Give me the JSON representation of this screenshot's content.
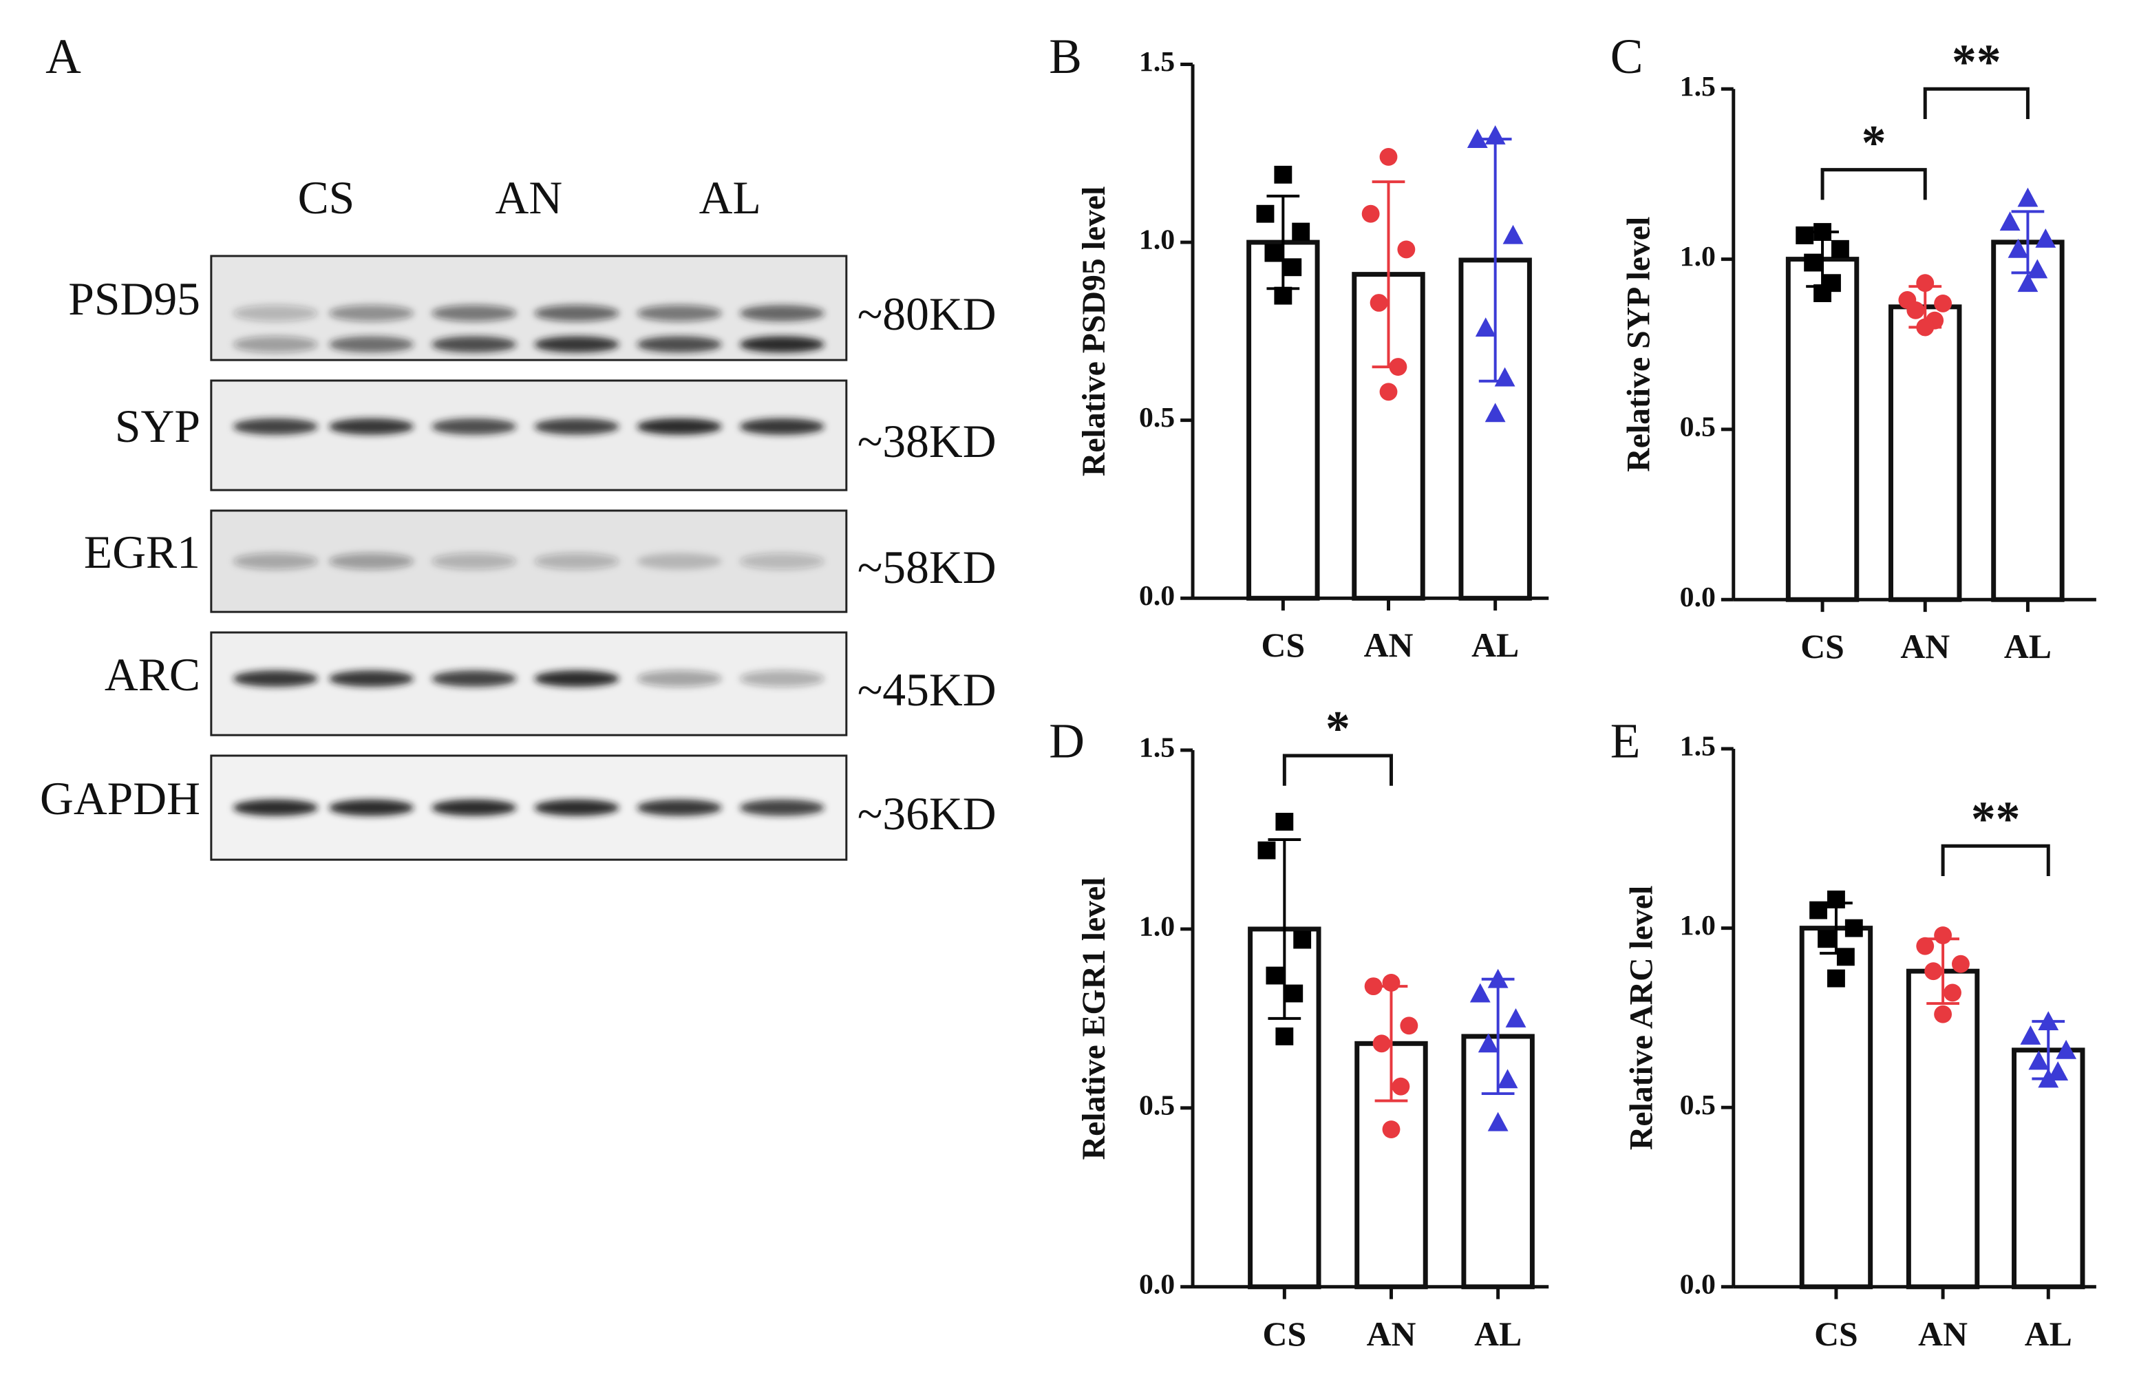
{
  "blot": {
    "panel": "A",
    "lanes": [
      "CS",
      "AN",
      "AL"
    ],
    "proteins": [
      {
        "name": "PSD95",
        "size": "~80KD"
      },
      {
        "name": "SYP",
        "size": "~38KD"
      },
      {
        "name": "EGR1",
        "size": "~58KD"
      },
      {
        "name": "ARC",
        "size": "~45KD"
      },
      {
        "name": "GAPDH",
        "size": "~36KD"
      }
    ]
  },
  "chart_data": [
    {
      "type": "bar",
      "panel": "B",
      "ylabel": "Relative PSD95 level",
      "categories": [
        "CS",
        "AN",
        "AL"
      ],
      "colors": [
        "#000000",
        "#e8393f",
        "#3b3bd6"
      ],
      "markers": [
        "square",
        "circle",
        "triangle"
      ],
      "values": [
        1.0,
        0.91,
        0.95
      ],
      "errors": [
        0.13,
        0.26,
        0.34
      ],
      "points": [
        [
          1.19,
          1.08,
          1.03,
          0.97,
          0.93,
          0.85
        ],
        [
          1.24,
          1.08,
          0.98,
          0.83,
          0.65,
          0.58
        ],
        [
          1.3,
          1.29,
          1.02,
          0.76,
          0.62,
          0.52
        ]
      ],
      "ylim": [
        0,
        1.5
      ],
      "yticks": [
        {
          "value": 0,
          "label": "0.0"
        },
        {
          "value": 0.5,
          "label": "0.5"
        },
        {
          "value": 1,
          "label": "1.0"
        },
        {
          "value": 1.5,
          "label": "1.5"
        }
      ],
      "significance": []
    },
    {
      "type": "bar",
      "panel": "C",
      "ylabel": "Relative SYP level",
      "categories": [
        "CS",
        "AN",
        "AL"
      ],
      "colors": [
        "#000000",
        "#e8393f",
        "#3b3bd6"
      ],
      "markers": [
        "square",
        "circle",
        "triangle"
      ],
      "values": [
        1.0,
        0.86,
        1.05
      ],
      "errors": [
        0.08,
        0.06,
        0.09
      ],
      "points": [
        [
          1.08,
          1.07,
          1.03,
          0.99,
          0.93,
          0.9
        ],
        [
          0.93,
          0.88,
          0.87,
          0.85,
          0.82,
          0.8
        ],
        [
          1.18,
          1.11,
          1.06,
          1.03,
          0.97,
          0.93
        ]
      ],
      "ylim": [
        0,
        1.5
      ],
      "yticks": [
        {
          "value": 0,
          "label": "0.0"
        },
        {
          "value": 0.5,
          "label": "0.5"
        },
        {
          "value": 1,
          "label": "1.0"
        },
        {
          "value": 1.5,
          "label": "1.5"
        }
      ],
      "significance": [
        {
          "between": [
            "CS",
            "AN"
          ],
          "label": "*"
        },
        {
          "between": [
            "AN",
            "AL"
          ],
          "label": "**"
        }
      ]
    },
    {
      "type": "bar",
      "panel": "D",
      "ylabel": "Relative EGR1 level",
      "categories": [
        "CS",
        "AN",
        "AL"
      ],
      "colors": [
        "#000000",
        "#e8393f",
        "#3b3bd6"
      ],
      "markers": [
        "square",
        "circle",
        "triangle"
      ],
      "values": [
        1.0,
        0.68,
        0.7
      ],
      "errors": [
        0.25,
        0.16,
        0.16
      ],
      "points": [
        [
          1.3,
          1.22,
          0.97,
          0.87,
          0.82,
          0.7
        ],
        [
          0.85,
          0.84,
          0.73,
          0.68,
          0.56,
          0.44
        ],
        [
          0.86,
          0.82,
          0.75,
          0.68,
          0.58,
          0.46
        ]
      ],
      "ylim": [
        0,
        1.5
      ],
      "yticks": [
        {
          "value": 0,
          "label": "0.0"
        },
        {
          "value": 0.5,
          "label": "0.5"
        },
        {
          "value": 1,
          "label": "1.0"
        },
        {
          "value": 1.5,
          "label": "1.5"
        }
      ],
      "significance": [
        {
          "between": [
            "CS",
            "AN"
          ],
          "label": "*"
        }
      ]
    },
    {
      "type": "bar",
      "panel": "E",
      "ylabel": "Relative ARC level",
      "categories": [
        "CS",
        "AN",
        "AL"
      ],
      "colors": [
        "#000000",
        "#e8393f",
        "#3b3bd6"
      ],
      "markers": [
        "square",
        "circle",
        "triangle"
      ],
      "values": [
        1.0,
        0.88,
        0.66
      ],
      "errors": [
        0.07,
        0.09,
        0.08
      ],
      "points": [
        [
          1.08,
          1.05,
          1.0,
          0.97,
          0.92,
          0.86
        ],
        [
          0.98,
          0.95,
          0.9,
          0.88,
          0.82,
          0.76
        ],
        [
          0.74,
          0.7,
          0.66,
          0.63,
          0.6,
          0.58
        ]
      ],
      "ylim": [
        0,
        1.5
      ],
      "yticks": [
        {
          "value": 0,
          "label": "0.0"
        },
        {
          "value": 0.5,
          "label": "0.5"
        },
        {
          "value": 1,
          "label": "1.0"
        },
        {
          "value": 1.5,
          "label": "1.5"
        }
      ],
      "significance": [
        {
          "between": [
            "AN",
            "AL"
          ],
          "label": "**"
        }
      ]
    }
  ]
}
